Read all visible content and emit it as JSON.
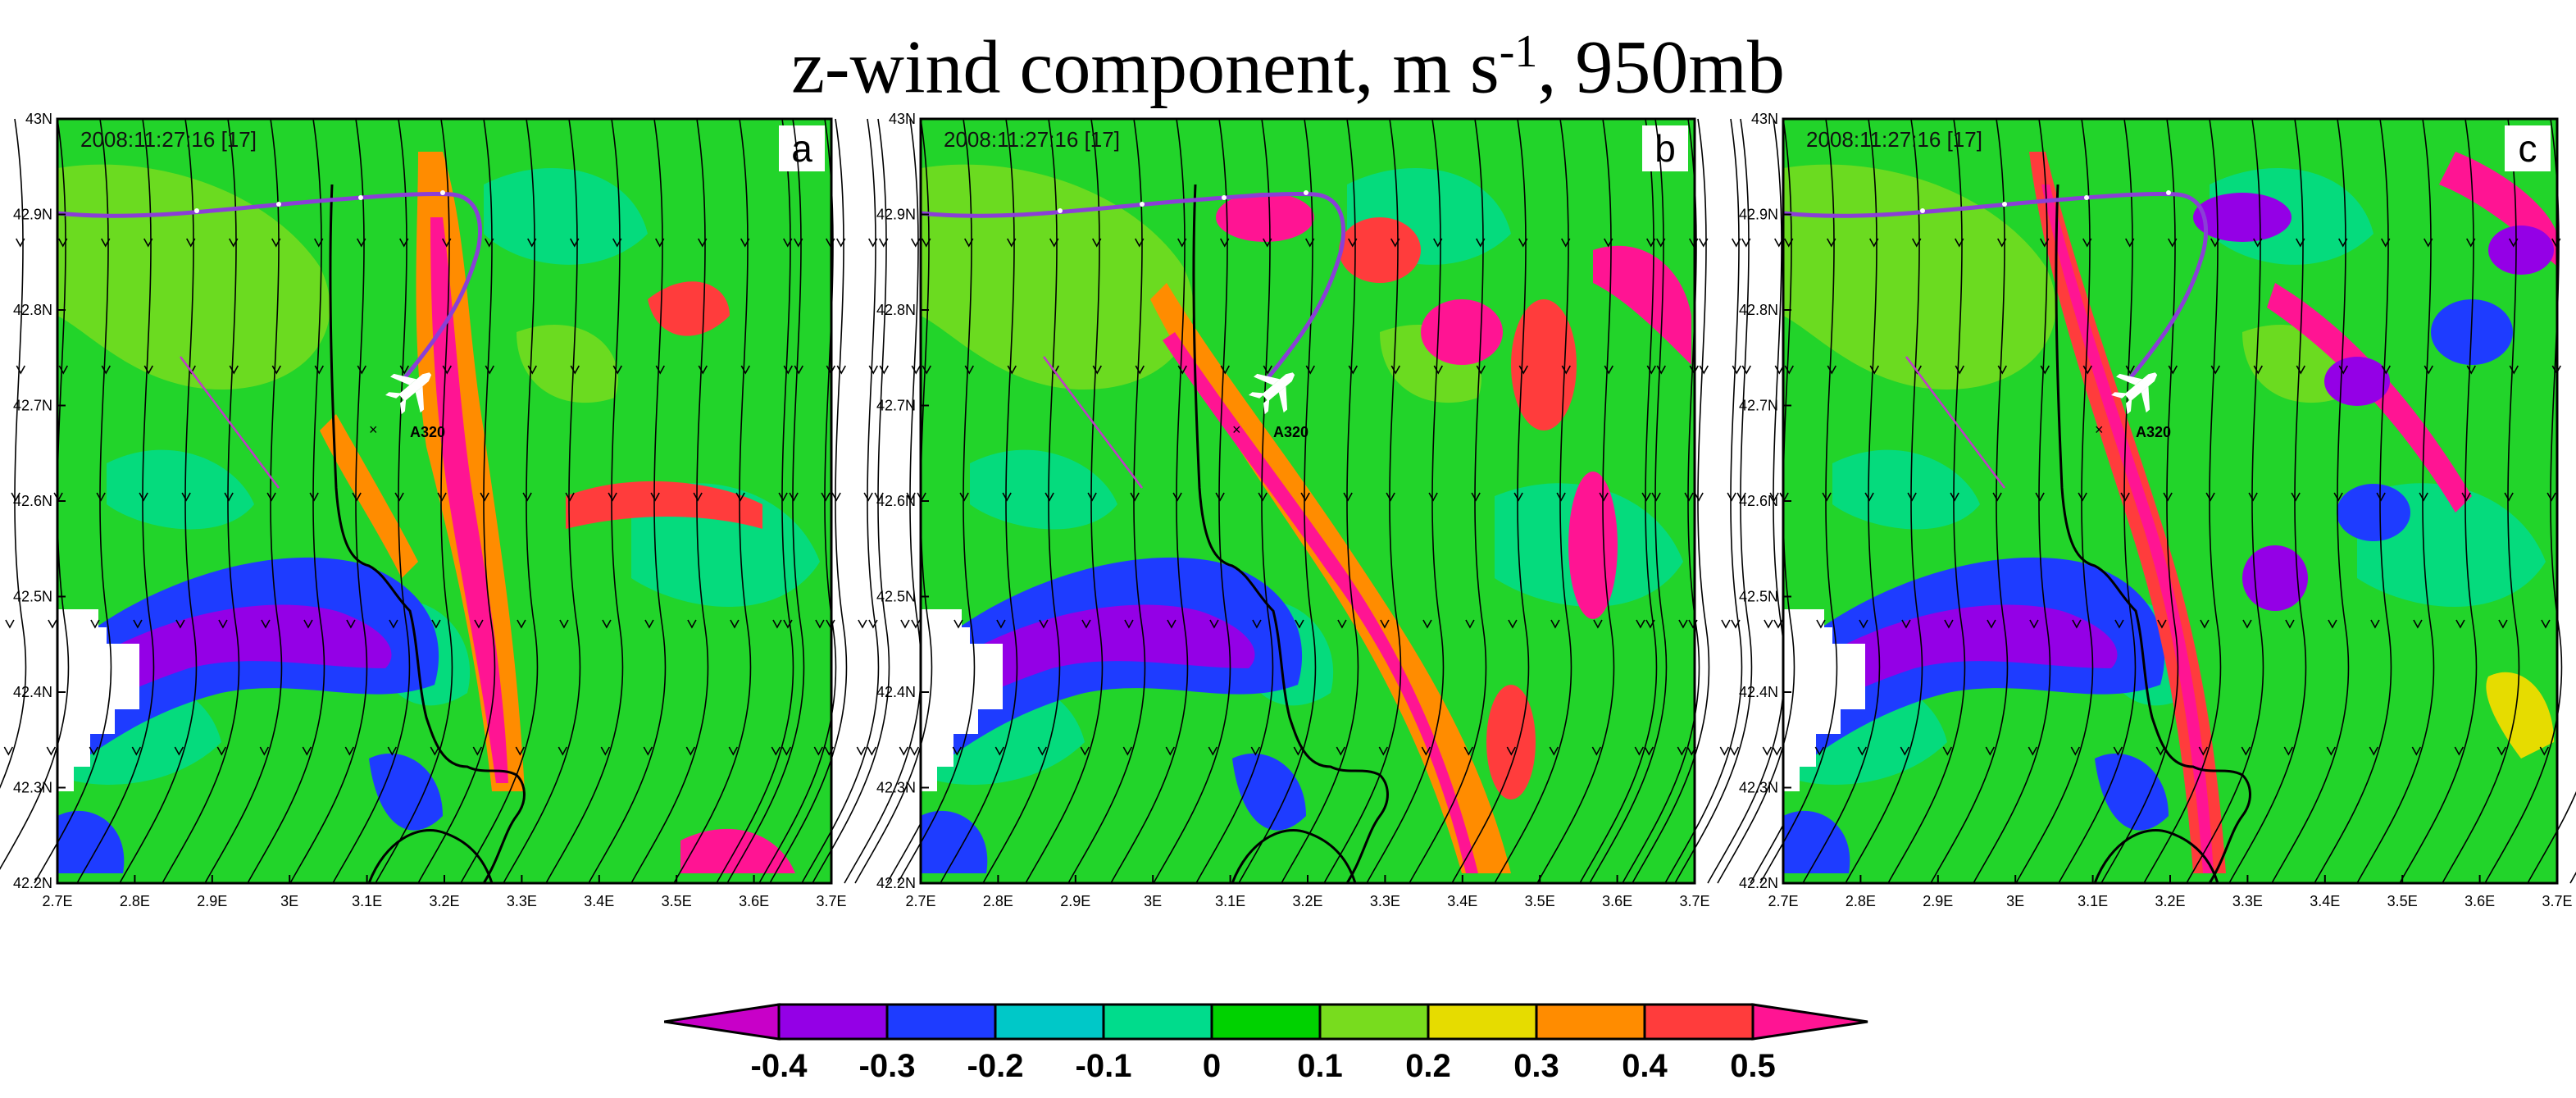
{
  "figure": {
    "title_main": "z-wind component, m s",
    "title_sup": "-1",
    "title_tail": ", 950mb"
  },
  "panels": [
    {
      "letter": "a",
      "timestamp": "2008:11:27:16 [17]",
      "aircraft": "A320"
    },
    {
      "letter": "b",
      "timestamp": "2008:11:27:16 [17]",
      "aircraft": "A320"
    },
    {
      "letter": "c",
      "timestamp": "2008:11:27:16 [17]",
      "aircraft": "A320"
    }
  ],
  "axes": {
    "x_ticks": [
      "2.7E",
      "2.8E",
      "2.9E",
      "3E",
      "3.1E",
      "3.2E",
      "3.3E",
      "3.4E",
      "3.5E",
      "3.6E",
      "3.7E"
    ],
    "y_ticks": [
      "42.2N",
      "42.3N",
      "42.4N",
      "42.5N",
      "42.6N",
      "42.7N",
      "42.8N",
      "42.9N",
      "43N"
    ],
    "x_range": [
      2.7,
      3.7
    ],
    "y_range": [
      42.2,
      43.0
    ]
  },
  "colorbar": {
    "labels": [
      "-0.4",
      "-0.3",
      "-0.2",
      "-0.1",
      "0",
      "0.1",
      "0.2",
      "0.3",
      "0.4",
      "0.5"
    ],
    "colors": [
      "#9400e6",
      "#1e3cff",
      "#00c8c8",
      "#00dc8c",
      "#00d200",
      "#78dc1e",
      "#e6dc00",
      "#ff8c00",
      "#ff3c3c",
      "#ff1493"
    ],
    "under_color": "#c800c8",
    "over_color": "#ff1493"
  },
  "colors": {
    "flight_track": "#8a3fd6",
    "background_field": "#22d42a"
  },
  "icons": {
    "aircraft": "airplane-icon",
    "missing_data": "white-mask"
  }
}
